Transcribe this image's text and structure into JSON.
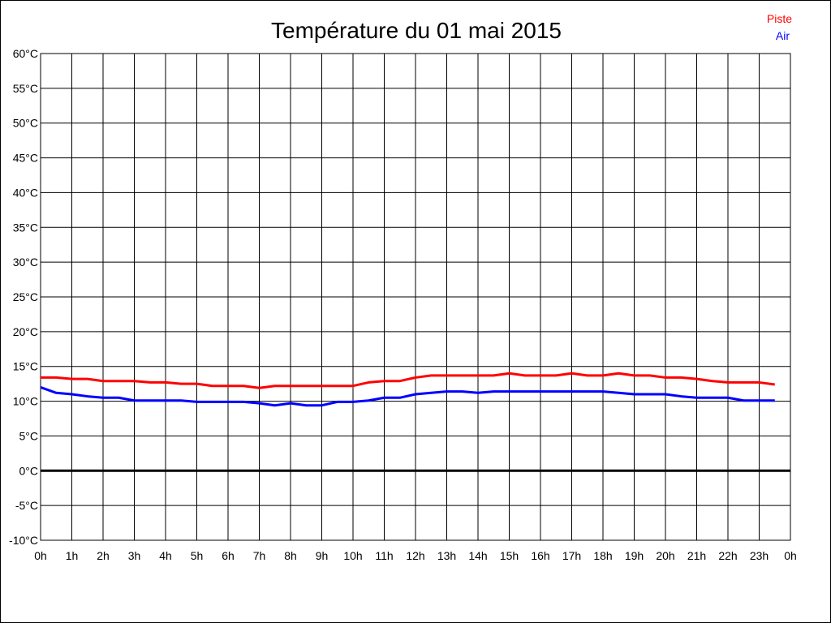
{
  "chart_data": {
    "type": "line",
    "title": "Température du 01 mai 2015",
    "xlabel": "",
    "ylabel": "",
    "xlim": [
      0,
      24
    ],
    "ylim": [
      -10,
      60
    ],
    "grid": true,
    "legend_placement": "top-right",
    "x_ticks": [
      "0h",
      "1h",
      "2h",
      "3h",
      "4h",
      "5h",
      "6h",
      "7h",
      "8h",
      "9h",
      "10h",
      "11h",
      "12h",
      "13h",
      "14h",
      "15h",
      "16h",
      "17h",
      "18h",
      "19h",
      "20h",
      "21h",
      "22h",
      "23h",
      "0h"
    ],
    "y_ticks": [
      "60°C",
      "55°C",
      "50°C",
      "45°C",
      "40°C",
      "35°C",
      "30°C",
      "25°C",
      "20°C",
      "15°C",
      "10°C",
      "5°C",
      "0°C",
      "-5°C",
      "-10°C"
    ],
    "y_tick_values": [
      60,
      55,
      50,
      45,
      40,
      35,
      30,
      25,
      20,
      15,
      10,
      5,
      0,
      -5,
      -10
    ],
    "x": [
      0,
      0.5,
      1,
      1.5,
      2,
      2.5,
      3,
      3.5,
      4,
      4.5,
      5,
      5.5,
      6,
      6.5,
      7,
      7.5,
      8,
      8.5,
      9,
      9.5,
      10,
      10.5,
      11,
      11.5,
      12,
      12.5,
      13,
      13.5,
      14,
      14.5,
      15,
      15.5,
      16,
      16.5,
      17,
      17.5,
      18,
      18.5,
      19,
      19.5,
      20,
      20.5,
      21,
      21.5,
      22,
      22.5,
      23,
      23.5
    ],
    "series": [
      {
        "name": "Piste",
        "color": "#ff0000",
        "values": [
          13.4,
          13.4,
          13.2,
          13.2,
          12.9,
          12.9,
          12.9,
          12.7,
          12.7,
          12.5,
          12.5,
          12.2,
          12.2,
          12.2,
          11.9,
          12.2,
          12.2,
          12.2,
          12.2,
          12.2,
          12.2,
          12.7,
          12.9,
          12.9,
          13.4,
          13.7,
          13.7,
          13.7,
          13.7,
          13.7,
          14.0,
          13.7,
          13.7,
          13.7,
          14.0,
          13.7,
          13.7,
          14.0,
          13.7,
          13.7,
          13.4,
          13.4,
          13.2,
          12.9,
          12.7,
          12.7,
          12.7,
          12.4
        ]
      },
      {
        "name": "Air",
        "color": "#0000ff",
        "values": [
          12.0,
          11.2,
          11.0,
          10.7,
          10.5,
          10.5,
          10.1,
          10.1,
          10.1,
          10.1,
          9.9,
          9.9,
          9.9,
          9.9,
          9.7,
          9.4,
          9.7,
          9.4,
          9.4,
          9.9,
          9.9,
          10.1,
          10.5,
          10.5,
          11.0,
          11.2,
          11.4,
          11.4,
          11.2,
          11.4,
          11.4,
          11.4,
          11.4,
          11.4,
          11.4,
          11.4,
          11.4,
          11.2,
          11.0,
          11.0,
          11.0,
          10.7,
          10.5,
          10.5,
          10.5,
          10.1,
          10.1,
          10.1
        ]
      }
    ]
  }
}
